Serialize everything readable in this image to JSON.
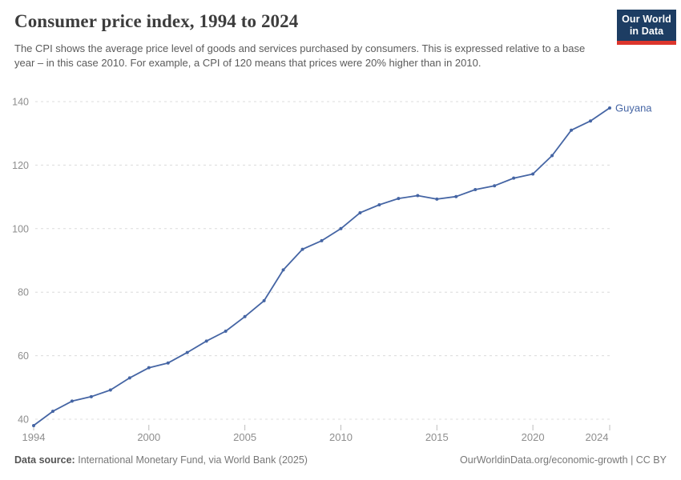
{
  "header": {
    "title": "Consumer price index, 1994 to 2024",
    "subtitle": "The CPI shows the average price level of goods and services purchased by consumers. This is expressed relative to a base year – in this case 2010. For example, a CPI of 120 means that prices were 20% higher than in 2010.",
    "logo": {
      "line1": "Our World",
      "line2": "in Data"
    }
  },
  "footer": {
    "data_source_label": "Data source:",
    "data_source": "International Monetary Fund, via World Bank (2025)",
    "attribution": "OurWorldinData.org/economic-growth | CC BY"
  },
  "chart_data": {
    "type": "line",
    "title": "Consumer price index, 1994 to 2024",
    "xlabel": "",
    "ylabel": "",
    "x": [
      1994,
      1995,
      1996,
      1997,
      1998,
      1999,
      2000,
      2001,
      2002,
      2003,
      2004,
      2005,
      2006,
      2007,
      2008,
      2009,
      2010,
      2011,
      2012,
      2013,
      2014,
      2015,
      2016,
      2017,
      2018,
      2019,
      2020,
      2021,
      2022,
      2023,
      2024
    ],
    "series": [
      {
        "name": "Guyana",
        "color": "#4565a4",
        "values": [
          38.0,
          42.5,
          45.7,
          47.1,
          49.2,
          53.0,
          56.2,
          57.7,
          61.0,
          64.6,
          67.7,
          72.3,
          77.3,
          87.0,
          93.5,
          96.2,
          100.0,
          105.0,
          107.5,
          109.5,
          110.4,
          109.3,
          110.1,
          112.3,
          113.5,
          115.9,
          117.2,
          123.0,
          131.0,
          133.9,
          138.0
        ]
      }
    ],
    "end_label": "Guyana",
    "x_ticks": [
      1994,
      2000,
      2005,
      2010,
      2015,
      2020,
      2024
    ],
    "y_ticks": [
      40,
      60,
      80,
      100,
      120,
      140
    ],
    "xlim": [
      1994,
      2024
    ],
    "ylim": [
      38,
      140
    ],
    "grid": "horizontal-dashed",
    "legend_position": "end-of-line",
    "grid_color": "#dcdcdc",
    "tick_label_color": "#8e8e8e"
  }
}
